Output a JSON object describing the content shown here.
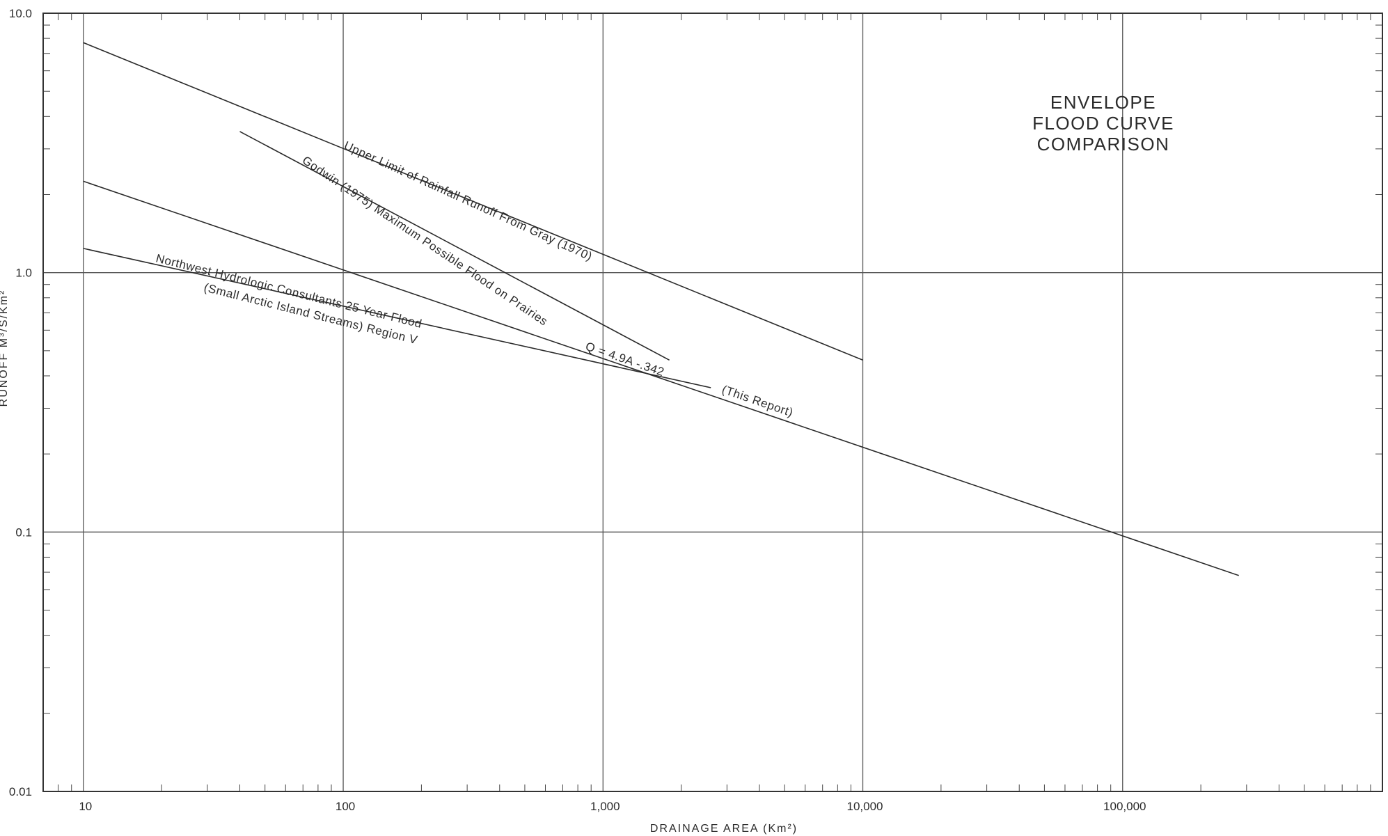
{
  "chart_data": {
    "type": "line",
    "title": [
      "ENVELOPE",
      "FLOOD CURVE",
      "COMPARISON"
    ],
    "xlabel": "DRAINAGE AREA (Km²)",
    "ylabel": "RUNOFF M³/S/Km²",
    "x_scale": "log",
    "y_scale": "log",
    "xlim": [
      7,
      1000000
    ],
    "ylim": [
      0.01,
      10
    ],
    "grid": true,
    "x_ticks": [
      {
        "value": 10,
        "label": "10"
      },
      {
        "value": 100,
        "label": "100"
      },
      {
        "value": 1000,
        "label": "1,000"
      },
      {
        "value": 10000,
        "label": "10,000"
      },
      {
        "value": 100000,
        "label": "100,000"
      }
    ],
    "y_ticks": [
      {
        "value": 0.01,
        "label": "0.01"
      },
      {
        "value": 0.1,
        "label": "0.1"
      },
      {
        "value": 1,
        "label": "1.0"
      },
      {
        "value": 10,
        "label": "10.0"
      }
    ],
    "series": [
      {
        "name": "Upper Limit of Rainfall Runoff From Gray (1970)",
        "x": [
          10,
          10000
        ],
        "y": [
          7.7,
          0.46
        ]
      },
      {
        "name": "Godwin (1975) Maximum Possible Flood on Prairies",
        "x": [
          40,
          1800
        ],
        "y": [
          3.5,
          0.46
        ]
      },
      {
        "name": "Q = 4.9A^-.342 (This Report)",
        "x": [
          10,
          280000
        ],
        "y": [
          2.25,
          0.068
        ]
      },
      {
        "name": "Northwest Hydrologic Consultants 25 Year Flood (Small Arctic Island Streams) Region V",
        "x": [
          10,
          2600
        ],
        "y": [
          1.24,
          0.36
        ]
      }
    ],
    "annotations": [
      {
        "id": "gray",
        "text": "Upper Limit of Rainfall Runoff From Gray (1970)"
      },
      {
        "id": "godwin",
        "text": "Godwin (1975) Maximum Possible Flood on Prairies"
      },
      {
        "id": "nhc1",
        "text": "Northwest Hydrologic Consultants 25 Year Flood"
      },
      {
        "id": "nhc2",
        "text": "(Small Arctic Island Streams) Region V"
      },
      {
        "id": "eq",
        "text": "Q = 4.9A -.342"
      },
      {
        "id": "report",
        "text": "(This Report)"
      }
    ]
  }
}
